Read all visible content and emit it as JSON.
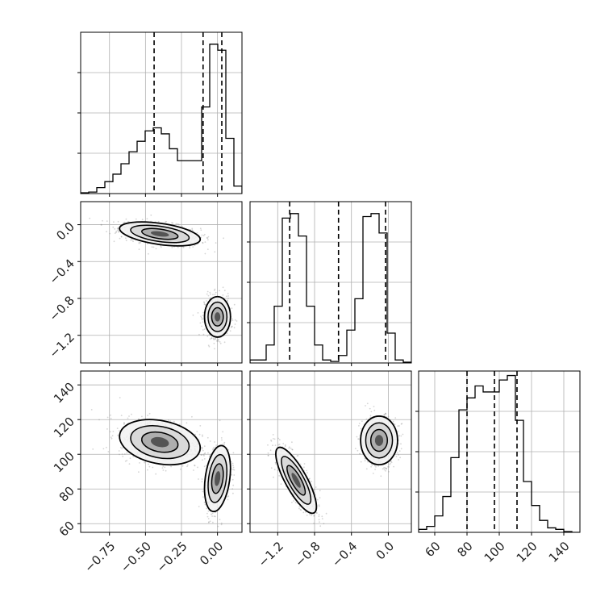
{
  "chart_data": {
    "type": "corner",
    "title": "",
    "parameters": [
      "",
      "",
      ""
    ],
    "style": {
      "line_color": "#000000",
      "grid_color": "#b0b0b0",
      "point_color": "#888888"
    },
    "panels": [
      {
        "id": "hist-0",
        "type": "histogram",
        "row": 0,
        "col": 0,
        "xlim": [
          -0.95,
          0.17
        ],
        "bin_width": 0.056,
        "bin_start": -0.95,
        "values": [
          0.005,
          0.01,
          0.04,
          0.08,
          0.13,
          0.2,
          0.28,
          0.35,
          0.42,
          0.44,
          0.4,
          0.3,
          0.22,
          0.22,
          0.22,
          0.58,
          1.0,
          0.96,
          0.37,
          0.05
        ],
        "ylim": [
          0,
          1.08
        ],
        "quantiles": [
          -0.44,
          -0.1,
          0.03
        ]
      },
      {
        "id": "hist-1",
        "type": "histogram",
        "row": 1,
        "col": 1,
        "xlim": [
          -1.5,
          0.25
        ],
        "bin_width": 0.0875,
        "bin_start": -1.5,
        "values": [
          0.02,
          0.02,
          0.12,
          0.38,
          0.97,
          1.0,
          0.85,
          0.38,
          0.12,
          0.02,
          0.01,
          0.05,
          0.22,
          0.43,
          0.98,
          1.0,
          0.87,
          0.2,
          0.02,
          0.005
        ],
        "ylim": [
          0,
          1.08
        ],
        "quantiles": [
          -1.07,
          -0.54,
          -0.03
        ]
      },
      {
        "id": "hist-2",
        "type": "histogram",
        "row": 2,
        "col": 2,
        "xlim": [
          50,
          150
        ],
        "bin_width": 5,
        "bin_start": 50,
        "values": [
          0.02,
          0.04,
          0.11,
          0.24,
          0.5,
          0.82,
          0.9,
          0.98,
          0.94,
          0.94,
          1.02,
          1.05,
          0.75,
          0.34,
          0.18,
          0.08,
          0.03,
          0.02,
          0.005,
          0.0
        ],
        "ylim": [
          0,
          1.08
        ],
        "quantiles": [
          80,
          97,
          111
        ]
      },
      {
        "id": "scatter-1-0",
        "type": "density2d",
        "row": 1,
        "col": 0,
        "xlim": [
          -0.95,
          0.17
        ],
        "ylim": [
          -1.5,
          0.25
        ],
        "modes": [
          {
            "cx": -0.4,
            "cy": -0.1,
            "sx": 0.14,
            "sy": 0.065,
            "rho": -0.45,
            "weight": 0.58
          },
          {
            "cx": 0.0,
            "cy": -1.0,
            "sx": 0.045,
            "sy": 0.11,
            "rho": 0.0,
            "weight": 0.42
          }
        ]
      },
      {
        "id": "scatter-2-0",
        "type": "density2d",
        "row": 2,
        "col": 0,
        "xlim": [
          -0.95,
          0.17
        ],
        "ylim": [
          55,
          148
        ],
        "modes": [
          {
            "cx": -0.4,
            "cy": 107,
            "sx": 0.14,
            "sy": 6.5,
            "rho": -0.25,
            "weight": 0.58
          },
          {
            "cx": 0.0,
            "cy": 86,
            "sx": 0.045,
            "sy": 9.5,
            "rho": 0.3,
            "weight": 0.42
          }
        ]
      },
      {
        "id": "scatter-2-1",
        "type": "density2d",
        "row": 2,
        "col": 1,
        "xlim": [
          -1.5,
          0.25
        ],
        "ylim": [
          55,
          148
        ],
        "modes": [
          {
            "cx": -1.0,
            "cy": 85,
            "sx": 0.11,
            "sy": 9.5,
            "rho": -0.8,
            "weight": 0.5
          },
          {
            "cx": -0.1,
            "cy": 108,
            "sx": 0.1,
            "sy": 7.0,
            "rho": 0.0,
            "weight": 0.5
          }
        ]
      }
    ],
    "axes": {
      "y_row1": {
        "ticks": [
          0.0,
          -0.4,
          -0.8,
          -1.2
        ],
        "labels": [
          "0.0",
          "−0.4",
          "−0.8",
          "−1.2"
        ]
      },
      "y_row2": {
        "ticks": [
          140,
          120,
          100,
          80,
          60
        ],
        "labels": [
          "140",
          "120",
          "100",
          "80",
          "60"
        ]
      },
      "x_col0": {
        "ticks": [
          -0.75,
          -0.5,
          -0.25,
          0.0
        ],
        "labels": [
          "−0.75",
          "−0.50",
          "−0.25",
          "0.00"
        ]
      },
      "x_col1": {
        "ticks": [
          -1.2,
          -0.8,
          -0.4,
          0.0
        ],
        "labels": [
          "−1.2",
          "−0.8",
          "−0.4",
          "0.0"
        ]
      },
      "x_col2": {
        "ticks": [
          60,
          80,
          100,
          120,
          140
        ],
        "labels": [
          "60",
          "80",
          "100",
          "120",
          "140"
        ]
      }
    },
    "grid": true,
    "legend": "none"
  }
}
